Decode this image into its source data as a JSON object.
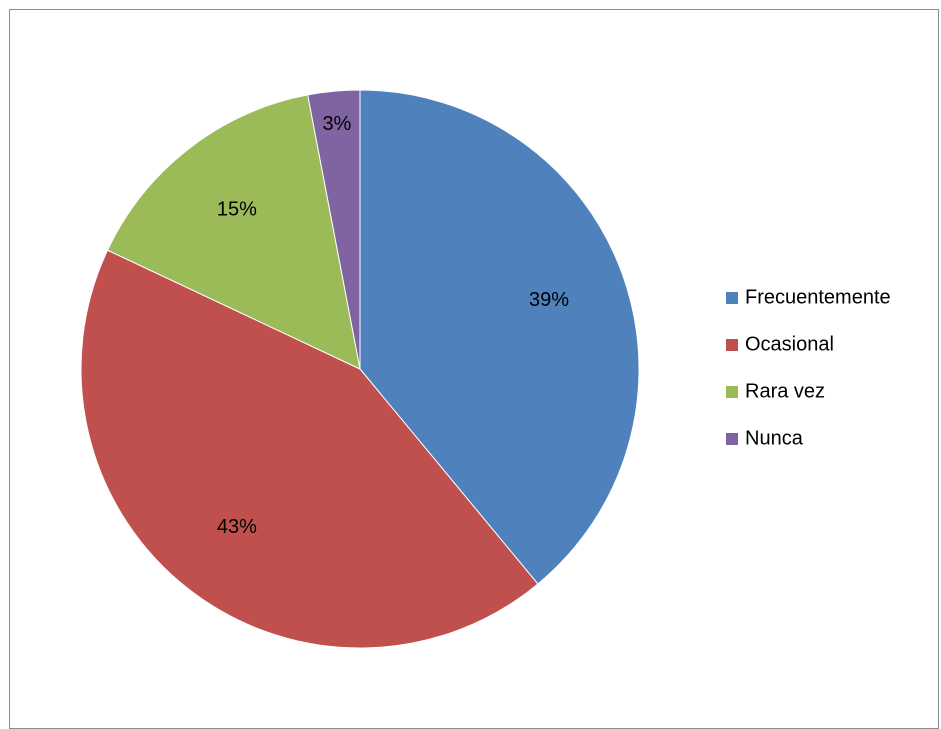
{
  "chart_data": {
    "type": "pie",
    "categories": [
      "Frecuentemente",
      "Ocasional",
      "Rara vez",
      "Nunca"
    ],
    "values": [
      39,
      43,
      15,
      3
    ],
    "labels": [
      "39%",
      "43%",
      "15%",
      "3%"
    ],
    "colors": [
      "#4F81BD",
      "#C0504D",
      "#9BBB59",
      "#8064A2"
    ],
    "legend_position": "right",
    "start_angle": "12 o'clock",
    "direction": "clockwise"
  }
}
